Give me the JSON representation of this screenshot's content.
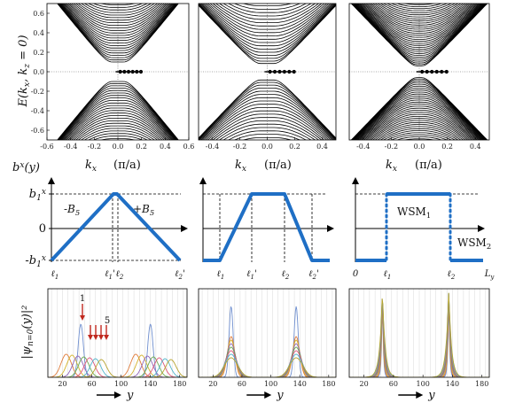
{
  "band_panels": {
    "ylabel": "E(k_x, k_z = 0)",
    "yticks": [
      "0.6",
      "0.4",
      "0.2",
      "0.0",
      "-0.2",
      "-0.4",
      "-0.6"
    ],
    "xticks_first": [
      "-0.6",
      "-0.4",
      "-0.2",
      "0.0",
      "0.2",
      "0.4",
      "0.6"
    ],
    "xticks_rest": [
      "-0.4",
      "-0.2",
      "0.0",
      "0.2",
      "0.4"
    ],
    "xlabel_var": "k_x",
    "xlabel_unit": "(π/a)"
  },
  "profile_panels": {
    "ylabel": "b^x(y)",
    "yticks": [
      "b_1^x",
      "0",
      "-b_1^x"
    ],
    "panel1": {
      "ticks": [
        "ℓ_1",
        "ℓ_1'",
        "ℓ_2",
        "ℓ_2'"
      ],
      "labels": [
        "-B_5",
        "+B_5"
      ]
    },
    "panel2": {
      "ticks": [
        "ℓ_1",
        "ℓ_1'",
        "ℓ_2",
        "ℓ_2'"
      ]
    },
    "panel3": {
      "ticks": [
        "0",
        "ℓ_1",
        "ℓ_2",
        "L_y"
      ],
      "labels": [
        "WSM_1",
        "WSM_2"
      ]
    }
  },
  "wave_panels": {
    "ylabel": "|ψ_{n=0}(y)|²",
    "xticks": [
      "20",
      "60",
      "100",
      "140",
      "180"
    ],
    "xlabel": "y",
    "arrow_labels": [
      "1",
      "5"
    ]
  },
  "colors": {
    "profile": "#1f6fc5",
    "arrow": "#c0281e",
    "wave_series": [
      "#6f8fcf",
      "#e07b39",
      "#d4b32c",
      "#8e63b8",
      "#6aa84f",
      "#e0557a",
      "#4fb3c9",
      "#b7a32e"
    ]
  }
}
